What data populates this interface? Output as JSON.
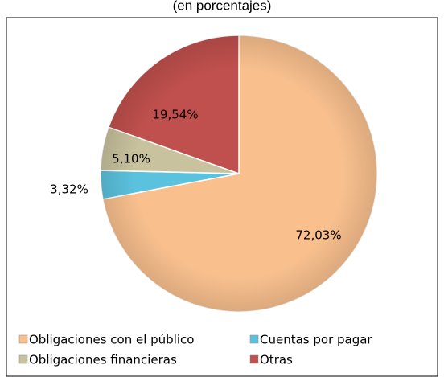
{
  "chart_data": {
    "type": "pie",
    "title": "(en porcentajes)",
    "categories": [
      "Obligaciones con el público",
      "Cuentas por pagar",
      "Obligaciones financieras",
      "Otras"
    ],
    "values": [
      72.03,
      3.32,
      5.1,
      19.54
    ],
    "value_labels": [
      "72,03%",
      "3,32%",
      "5,10%",
      "19,54%"
    ],
    "colors": [
      "#F9C08E",
      "#5BC2DE",
      "#C9C29E",
      "#C0504D"
    ],
    "legend": "bottom"
  }
}
